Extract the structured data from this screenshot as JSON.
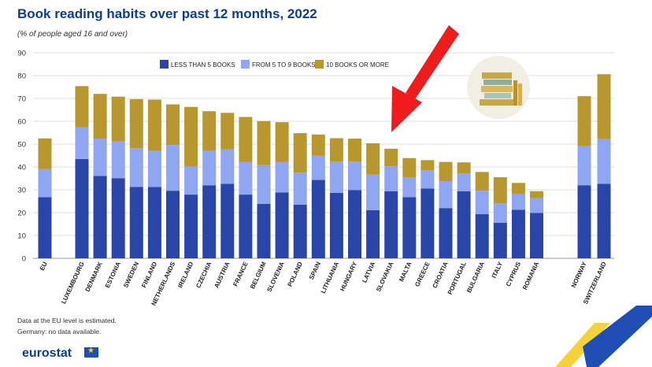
{
  "title": "Book reading habits over past 12 months, 2022",
  "subtitle": "(% of people aged 16 and over)",
  "notes": [
    "Data at the EU level is estimated.",
    "Germany: no data available."
  ],
  "logo_text": "eurostat",
  "colors": {
    "less5": "#2a45a8",
    "five9": "#8fa6f2",
    "ten_plus": "#b8982e",
    "arrow": "#ee1c1c"
  },
  "chart_data": {
    "type": "bar",
    "stacked": true,
    "ylim": [
      0,
      90
    ],
    "yticks": [
      0,
      10,
      20,
      30,
      40,
      50,
      60,
      70,
      80,
      90
    ],
    "grid": true,
    "legend_position": "top-center",
    "categories": [
      "EU",
      "LUXEMBOURG",
      "DENMARK",
      "ESTONIA",
      "SWEDEN",
      "FINLAND",
      "NETHERLANDS",
      "IRELAND",
      "CZECHIA",
      "AUSTRIA",
      "FRANCE",
      "BELGIUM",
      "SLOVENIA",
      "POLAND",
      "SPAIN",
      "LITHUANIA",
      "HUNGARY",
      "LATVIA",
      "SLOVAKIA",
      "MALTA",
      "GREECE",
      "CROATIA",
      "PORTUGAL",
      "BULGARIA",
      "ITALY",
      "CYPRUS",
      "ROMANIA",
      "NORWAY",
      "SWITZERLAND"
    ],
    "series": [
      {
        "name": "LESS THAN 5 BOOKS",
        "color": "#2a45a8",
        "values": [
          26.8,
          43.5,
          36.1,
          35.1,
          31.3,
          31.2,
          29.6,
          27.9,
          31.9,
          32.6,
          27.9,
          23.8,
          28.8,
          23.5,
          34.3,
          28.7,
          29.9,
          21.1,
          29.4,
          26.8,
          30.6,
          22.0,
          29.4,
          19.4,
          15.6,
          21.3,
          19.9,
          32.0,
          32.6
        ]
      },
      {
        "name": "FROM 5 TO 9 BOOKS",
        "color": "#8fa6f2",
        "values": [
          12.3,
          13.9,
          16.3,
          16.0,
          16.9,
          15.8,
          20.0,
          12.3,
          15.1,
          15.1,
          14.2,
          17.0,
          13.3,
          14.0,
          10.7,
          13.7,
          12.4,
          15.5,
          10.9,
          8.6,
          7.9,
          11.8,
          7.8,
          10.2,
          8.5,
          7.0,
          6.4,
          17.3,
          19.6
        ]
      },
      {
        "name": "10 BOOKS OR MORE",
        "color": "#b8982e",
        "values": [
          13.4,
          18.0,
          19.6,
          19.7,
          21.5,
          22.5,
          17.8,
          26.1,
          17.4,
          16.0,
          19.8,
          19.3,
          17.5,
          17.3,
          9.2,
          10.2,
          10.1,
          13.8,
          7.7,
          8.5,
          4.5,
          8.4,
          4.8,
          8.2,
          11.4,
          4.7,
          3.1,
          21.7,
          28.4
        ]
      }
    ]
  }
}
